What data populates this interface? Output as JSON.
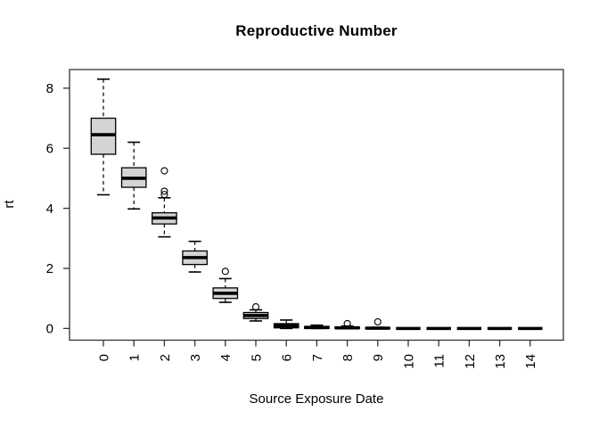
{
  "chart_data": {
    "type": "boxplot",
    "title": "Reproductive Number",
    "xlabel": "Source Exposure Date",
    "ylabel": "rt",
    "categories": [
      "0",
      "1",
      "2",
      "3",
      "4",
      "5",
      "6",
      "7",
      "8",
      "9",
      "10",
      "11",
      "12",
      "13",
      "14"
    ],
    "yticks": [
      0,
      2,
      4,
      6,
      8
    ],
    "ylim": [
      -0.39,
      8.62
    ],
    "grid": false,
    "legend": false,
    "colors": {
      "box_fill": "#d4d4d4",
      "stroke": "#000000",
      "axis": "#333333",
      "background": "#ffffff"
    },
    "boxes": [
      {
        "category": "0",
        "whisker_low": 4.45,
        "q1": 5.8,
        "median": 6.45,
        "q3": 7.0,
        "whisker_high": 8.3,
        "outliers": []
      },
      {
        "category": "1",
        "whisker_low": 3.98,
        "q1": 4.7,
        "median": 5.0,
        "q3": 5.35,
        "whisker_high": 6.2,
        "outliers": []
      },
      {
        "category": "2",
        "whisker_low": 3.05,
        "q1": 3.48,
        "median": 3.68,
        "q3": 3.85,
        "whisker_high": 4.35,
        "outliers": [
          4.46,
          4.57,
          5.25
        ]
      },
      {
        "category": "3",
        "whisker_low": 1.88,
        "q1": 2.13,
        "median": 2.36,
        "q3": 2.58,
        "whisker_high": 2.9,
        "outliers": []
      },
      {
        "category": "4",
        "whisker_low": 0.87,
        "q1": 1.0,
        "median": 1.17,
        "q3": 1.35,
        "whisker_high": 1.66,
        "outliers": [
          1.9
        ]
      },
      {
        "category": "5",
        "whisker_low": 0.25,
        "q1": 0.33,
        "median": 0.43,
        "q3": 0.53,
        "whisker_high": 0.62,
        "outliers": [
          0.72
        ]
      },
      {
        "category": "6",
        "whisker_low": 0.0,
        "q1": 0.02,
        "median": 0.09,
        "q3": 0.16,
        "whisker_high": 0.28,
        "outliers": []
      },
      {
        "category": "7",
        "whisker_low": 0.0,
        "q1": 0.0,
        "median": 0.03,
        "q3": 0.07,
        "whisker_high": 0.11,
        "outliers": []
      },
      {
        "category": "8",
        "whisker_low": 0.0,
        "q1": 0.0,
        "median": 0.02,
        "q3": 0.05,
        "whisker_high": 0.08,
        "outliers": [
          0.16
        ]
      },
      {
        "category": "9",
        "whisker_low": 0.0,
        "q1": 0.0,
        "median": 0.01,
        "q3": 0.02,
        "whisker_high": 0.04,
        "outliers": [
          0.22
        ]
      },
      {
        "category": "10",
        "whisker_low": 0.0,
        "q1": 0.0,
        "median": 0.0,
        "q3": 0.0,
        "whisker_high": 0.0,
        "outliers": []
      },
      {
        "category": "11",
        "whisker_low": 0.0,
        "q1": 0.0,
        "median": 0.0,
        "q3": 0.0,
        "whisker_high": 0.0,
        "outliers": []
      },
      {
        "category": "12",
        "whisker_low": 0.0,
        "q1": 0.0,
        "median": 0.0,
        "q3": 0.0,
        "whisker_high": 0.0,
        "outliers": []
      },
      {
        "category": "13",
        "whisker_low": 0.0,
        "q1": 0.0,
        "median": 0.0,
        "q3": 0.0,
        "whisker_high": 0.0,
        "outliers": []
      },
      {
        "category": "14",
        "whisker_low": 0.0,
        "q1": 0.0,
        "median": 0.0,
        "q3": 0.0,
        "whisker_high": 0.0,
        "outliers": []
      }
    ]
  }
}
